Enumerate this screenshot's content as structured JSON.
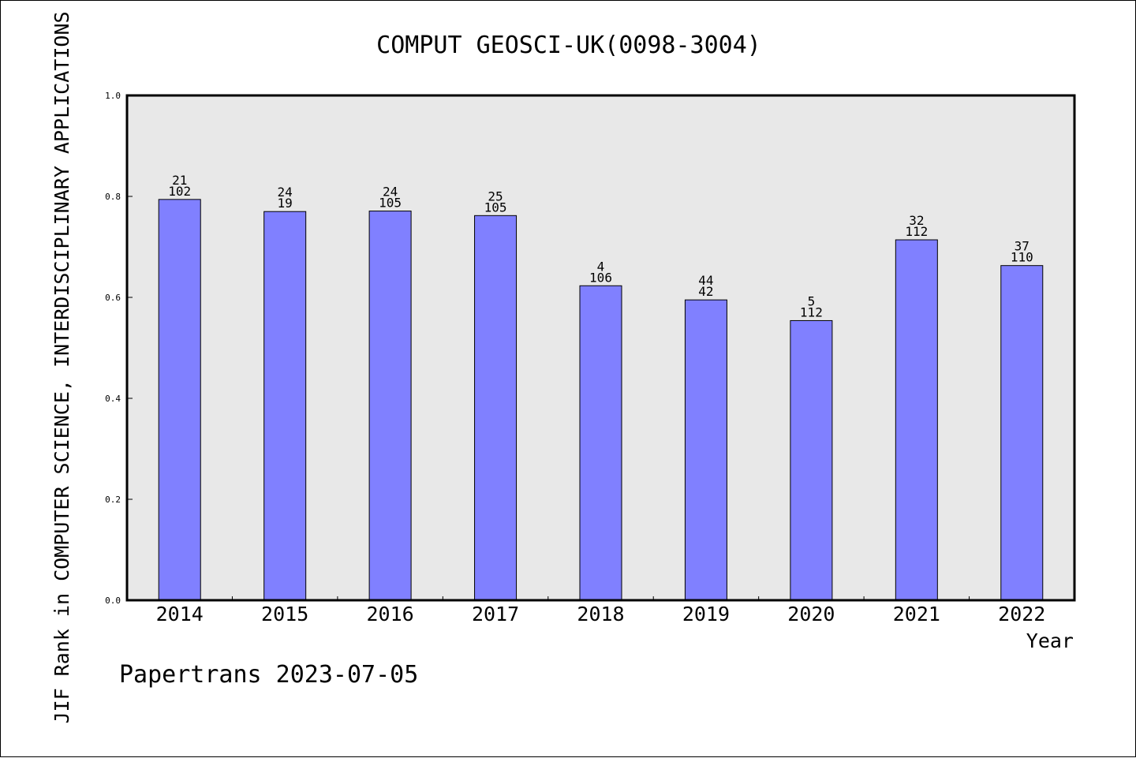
{
  "chart_data": {
    "type": "bar",
    "title": "COMPUT GEOSCI-UK(0098-3004)",
    "xlabel": "Year",
    "ylabel": "JIF Rank in COMPUTER SCIENCE, INTERDISCIPLINARY APPLICATIONS",
    "ylim": [
      0,
      1.0
    ],
    "yticks": [
      "0.0",
      "0.2",
      "0.4",
      "0.6",
      "0.8",
      "1.0"
    ],
    "categories": [
      "2014",
      "2015",
      "2016",
      "2017",
      "2018",
      "2019",
      "2020",
      "2021",
      "2022"
    ],
    "values": [
      0.794,
      0.77,
      0.771,
      0.762,
      0.623,
      0.595,
      0.554,
      0.714,
      0.663
    ],
    "rank": [
      "21",
      "24",
      "24",
      "25",
      "4",
      "44",
      "5",
      "32",
      "37"
    ],
    "total": [
      "102",
      "19",
      "105",
      "105",
      "106",
      "42",
      "112",
      "112",
      "110"
    ],
    "grid": false,
    "colors": {
      "bar": "#8080ff",
      "plot_bg": "#e8e8e8",
      "axis": "#000000"
    }
  },
  "footer": {
    "credit": "Papertrans 2023-07-05"
  }
}
